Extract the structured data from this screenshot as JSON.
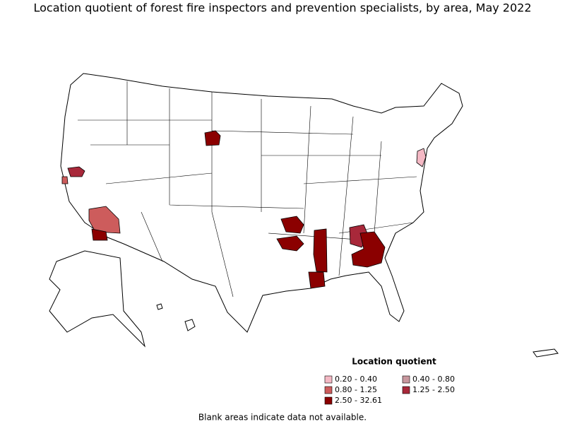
{
  "title": "Location quotient of forest fire inspectors and prevention specialists, by area, May 2022",
  "legend": {
    "title": "Location quotient",
    "entries": [
      {
        "label": "0.20 - 0.40",
        "color": "#f4b8c4"
      },
      {
        "label": "0.40 - 0.80",
        "color": "#c8979e"
      },
      {
        "label": "0.80 - 1.25",
        "color": "#cd5c5c"
      },
      {
        "label": "1.25 - 2.50",
        "color": "#a8283a"
      },
      {
        "label": "2.50 - 32.61",
        "color": "#8b0000"
      }
    ]
  },
  "footnote": "Blank areas indicate data not available."
}
